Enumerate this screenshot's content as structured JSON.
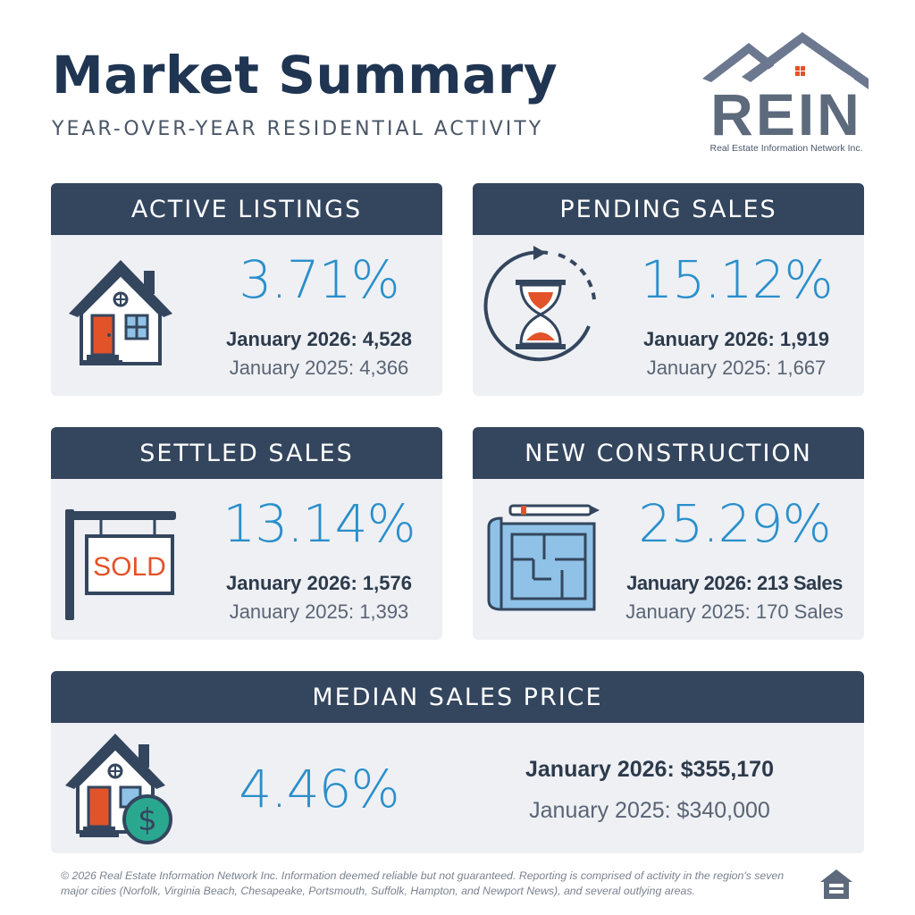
{
  "header": {
    "title": "Market Summary",
    "subtitle": "YEAR-OVER-YEAR RESIDENTIAL ACTIVITY"
  },
  "logo": {
    "text": "REIN",
    "tagline": "Real Estate Information Network Inc."
  },
  "colors": {
    "header_bg": "#34465e",
    "card_bg": "#eef0f4",
    "accent_blue": "#2a8fcb",
    "title_navy": "#1f3552",
    "door_orange": "#e2532a"
  },
  "cards": {
    "active_listings": {
      "title": "ACTIVE LISTINGS",
      "icon": "house-icon",
      "change": "3.71%",
      "current": "January 2026: 4,528",
      "previous": "January 2025: 4,366"
    },
    "pending_sales": {
      "title": "PENDING SALES",
      "icon": "hourglass-icon",
      "change": "15.12%",
      "current": "January 2026: 1,919",
      "previous": "January 2025: 1,667"
    },
    "settled_sales": {
      "title": "SETTLED SALES",
      "icon": "sold-sign-icon",
      "sign_text": "SOLD",
      "change": "13.14%",
      "current": "January 2026: 1,576",
      "previous": "January 2025: 1,393"
    },
    "new_construction": {
      "title": "NEW CONSTRUCTION",
      "icon": "blueprint-icon",
      "change": "25.29%",
      "current": "January 2026: 213 Sales",
      "previous": "January 2025: 170 Sales"
    },
    "median_sales_price": {
      "title": "MEDIAN SALES PRICE",
      "icon": "house-dollar-icon",
      "dollar_symbol": "$",
      "change": "4.46%",
      "current": "January 2026: $355,170",
      "previous": "January 2025: $340,000"
    }
  },
  "footer": {
    "disclaimer": "© 2026 Real Estate Information Network Inc. Information deemed reliable but not guaranteed. Reporting is comprised of activity in the region's seven major cities (Norfolk, Virginia Beach, Chesapeake, Portsmouth, Suffolk, Hampton, and Newport News), and several outlying areas.",
    "icon": "equal-housing-icon"
  }
}
